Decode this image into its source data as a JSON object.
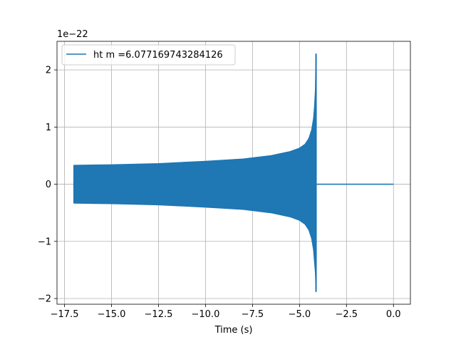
{
  "chart_data": {
    "type": "line",
    "title": "",
    "xlabel": "Time (s)",
    "ylabel": "",
    "xlim": [
      -17.9,
      0.9
    ],
    "ylim": [
      -2.1,
      2.5
    ],
    "y_scale_factor": "1e−22",
    "x_ticks": [
      -17.5,
      -15.0,
      -12.5,
      -10.0,
      -7.5,
      -5.0,
      -2.5,
      0.0
    ],
    "x_tick_labels": [
      "−17.5",
      "−15.0",
      "−12.5",
      "−10.0",
      "−7.5",
      "−5.0",
      "−2.5",
      "0.0"
    ],
    "y_ticks": [
      -2,
      -1,
      0,
      1,
      2
    ],
    "y_tick_labels": [
      "−2",
      "−1",
      "0",
      "1",
      "2"
    ],
    "grid": true,
    "legend_position": "top-left",
    "series": [
      {
        "name": "ht m =6.077169743284126",
        "color": "#1f77b4",
        "signal_start": -17.0,
        "merger_time": -4.08,
        "end": 0.0,
        "envelope": {
          "t": [
            -17.0,
            -15.0,
            -12.5,
            -10.0,
            -8.0,
            -6.5,
            -5.5,
            -5.0,
            -4.7,
            -4.5,
            -4.35,
            -4.25,
            -4.2,
            -4.15,
            -4.12
          ],
          "upper": [
            0.33,
            0.34,
            0.36,
            0.4,
            0.44,
            0.5,
            0.57,
            0.63,
            0.7,
            0.8,
            0.95,
            1.15,
            1.35,
            1.65,
            2.28
          ],
          "lower": [
            -0.33,
            -0.34,
            -0.36,
            -0.4,
            -0.44,
            -0.5,
            -0.57,
            -0.63,
            -0.7,
            -0.8,
            -0.95,
            -1.15,
            -1.35,
            -1.55,
            -1.88
          ]
        },
        "post_merger_value": 0.0
      }
    ]
  }
}
